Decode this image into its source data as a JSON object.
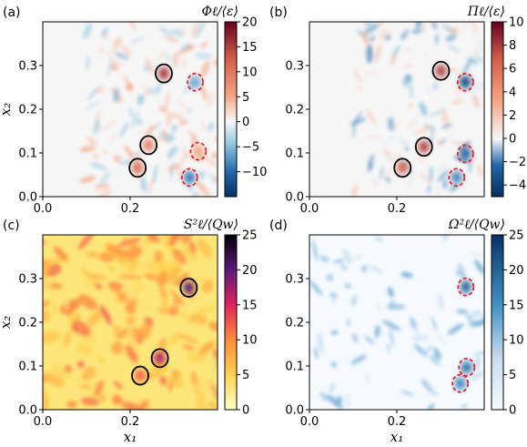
{
  "chart_data": [
    {
      "panel_label": "(a)",
      "type": "heatmap",
      "colormap": "diverging-red-blue",
      "colorbar_title": "Φℓ/⟨ε⟩",
      "colorbar_range": [
        -15,
        20
      ],
      "colorbar_ticks": [
        "20",
        "15",
        "10",
        "5",
        "0",
        "−5",
        "−10"
      ],
      "x_ticks": [
        "0.0",
        "0.2"
      ],
      "y_ticks": [
        "0.3",
        "0.2",
        "0.1",
        "0.0"
      ],
      "xlabel": "",
      "ylabel": "x₂",
      "xlim": [
        0.0,
        0.4
      ],
      "ylim": [
        0.0,
        0.4
      ],
      "highlights": [
        {
          "x": 0.277,
          "y": 0.282,
          "style": "solid-black",
          "value": 16
        },
        {
          "x": 0.242,
          "y": 0.118,
          "style": "solid-black",
          "value": 10
        },
        {
          "x": 0.217,
          "y": 0.066,
          "style": "solid-black",
          "value": 12
        },
        {
          "x": 0.349,
          "y": 0.262,
          "style": "dashed-red",
          "value": -6
        },
        {
          "x": 0.356,
          "y": 0.104,
          "style": "dashed-red",
          "value": 6
        },
        {
          "x": 0.336,
          "y": 0.044,
          "style": "dashed-red",
          "value": -9
        }
      ]
    },
    {
      "panel_label": "(b)",
      "type": "heatmap",
      "colormap": "diverging-red-blue",
      "colorbar_title": "Πℓ/⟨ε⟩",
      "colorbar_range": [
        -5,
        10
      ],
      "colorbar_ticks": [
        "10",
        "8",
        "6",
        "4",
        "2",
        "0",
        "−2",
        "−4"
      ],
      "x_ticks": [
        "0.0",
        "0.2"
      ],
      "y_ticks": [
        "0.3",
        "0.2",
        "0.1",
        "0.0"
      ],
      "xlabel": "",
      "ylabel": "",
      "xlim": [
        0.0,
        0.4
      ],
      "ylim": [
        0.0,
        0.4
      ],
      "highlights": [
        {
          "x": 0.301,
          "y": 0.288,
          "style": "solid-black",
          "value": 8
        },
        {
          "x": 0.262,
          "y": 0.114,
          "style": "solid-black",
          "value": 8
        },
        {
          "x": 0.213,
          "y": 0.066,
          "style": "solid-black",
          "value": 7
        },
        {
          "x": 0.357,
          "y": 0.262,
          "style": "dashed-red",
          "value": -4
        },
        {
          "x": 0.357,
          "y": 0.098,
          "style": "dashed-red",
          "value": -3
        },
        {
          "x": 0.337,
          "y": 0.044,
          "style": "dashed-red",
          "value": -2
        }
      ]
    },
    {
      "panel_label": "(c)",
      "type": "heatmap",
      "colormap": "yellow-red-black",
      "colorbar_title": "S²ℓ/⟨Qw⟩",
      "colorbar_range": [
        0,
        25
      ],
      "colorbar_ticks": [
        "25",
        "20",
        "15",
        "10",
        "5",
        "0"
      ],
      "x_ticks": [
        "0.0",
        "0.2"
      ],
      "y_ticks": [
        "0.3",
        "0.2",
        "0.1",
        "0.0"
      ],
      "xlabel": "x₁",
      "ylabel": "x₂",
      "xlim": [
        0.0,
        0.4
      ],
      "ylim": [
        0.0,
        0.4
      ],
      "highlights": [
        {
          "x": 0.334,
          "y": 0.279,
          "style": "solid-black",
          "value": 20
        },
        {
          "x": 0.268,
          "y": 0.118,
          "style": "solid-black",
          "value": 17
        },
        {
          "x": 0.223,
          "y": 0.078,
          "style": "solid-black",
          "value": 12
        }
      ]
    },
    {
      "panel_label": "(d)",
      "type": "heatmap",
      "colormap": "white-blue",
      "colorbar_title": "Ω²ℓ/⟨Qw⟩",
      "colorbar_range": [
        0,
        25
      ],
      "colorbar_ticks": [
        "25",
        "20",
        "15",
        "10",
        "5",
        "0"
      ],
      "x_ticks": [
        "0.0",
        "0.2"
      ],
      "y_ticks": [
        "0.3",
        "0.2",
        "0.1",
        "0.0"
      ],
      "xlabel": "x₁",
      "ylabel": "",
      "xlim": [
        0.0,
        0.4
      ],
      "ylim": [
        0.0,
        0.4
      ],
      "highlights": [
        {
          "x": 0.358,
          "y": 0.281,
          "style": "dashed-red",
          "value": 20
        },
        {
          "x": 0.36,
          "y": 0.097,
          "style": "dashed-red",
          "value": 18
        },
        {
          "x": 0.345,
          "y": 0.06,
          "style": "dashed-red",
          "value": 16
        }
      ]
    }
  ],
  "colors": {
    "circle_solid": "#000000",
    "circle_dashed": "#e0252b"
  }
}
